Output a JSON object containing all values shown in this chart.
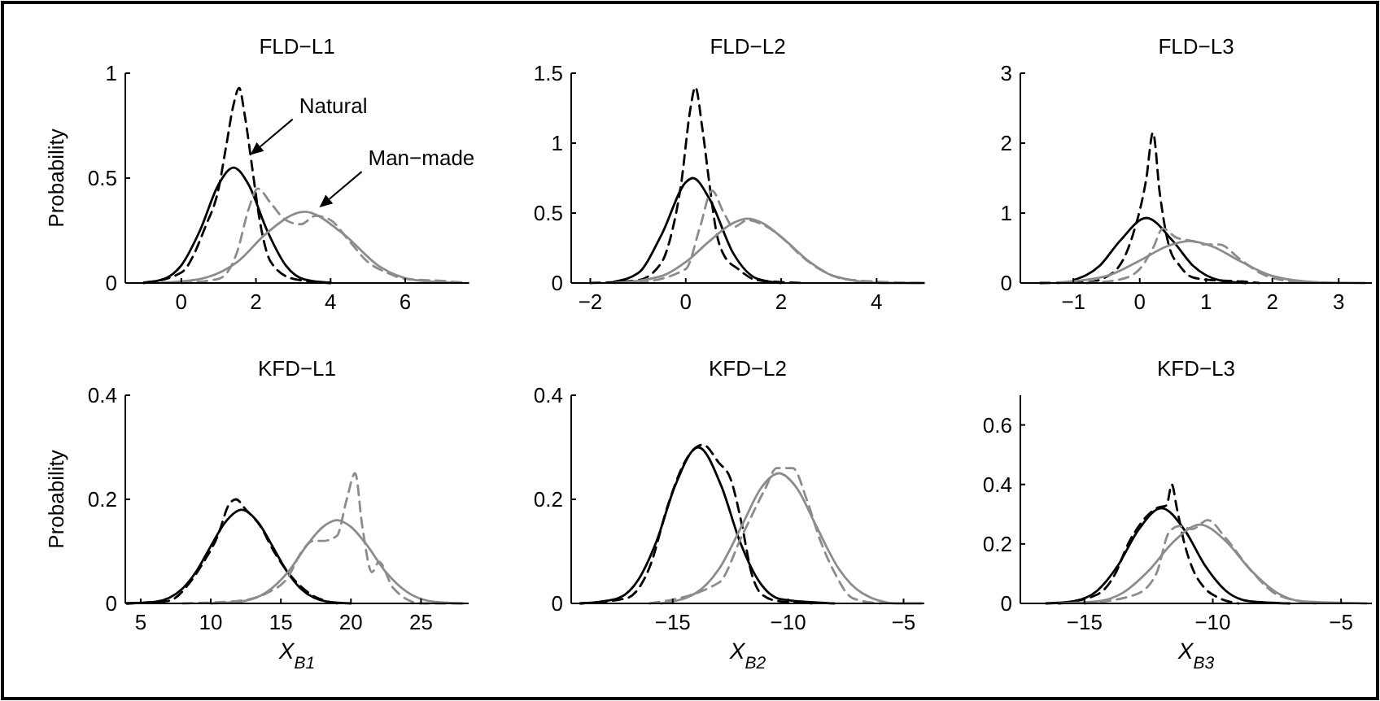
{
  "chart_data": [
    {
      "type": "line",
      "title": "FLD−L1",
      "ylabel": "Probability",
      "xlim": [
        -1.5,
        7.7
      ],
      "xticks": [
        0,
        2,
        4,
        6
      ],
      "ylim": [
        0,
        1
      ],
      "yticks": [
        0,
        0.5,
        1
      ],
      "annotations": [
        {
          "text": "Natural",
          "x": 1.85,
          "y": 0.61
        },
        {
          "text": "Man−made",
          "x": 3.7,
          "y": 0.36
        }
      ],
      "series": [
        {
          "color": "#000000",
          "line_style": "solid",
          "x": [
            -1,
            -0.5,
            0,
            0.5,
            1,
            1.4,
            1.8,
            2.3,
            2.8,
            3.3,
            4
          ],
          "values": [
            0.002,
            0.017,
            0.084,
            0.25,
            0.47,
            0.55,
            0.47,
            0.25,
            0.084,
            0.017,
            0.001
          ]
        },
        {
          "color": "#000000",
          "line_style": "dashed",
          "x": [
            -1,
            0,
            0.65,
            1,
            1.2,
            1.4,
            1.55,
            1.7,
            1.9,
            2.1,
            2.4,
            3,
            4
          ],
          "values": [
            0,
            0.05,
            0.27,
            0.45,
            0.65,
            0.85,
            0.93,
            0.8,
            0.55,
            0.3,
            0.1,
            0.02,
            0
          ]
        },
        {
          "color": "#8c8c8c",
          "line_style": "solid",
          "x": [
            -0.5,
            0.5,
            1.5,
            2.3,
            3.3,
            4.3,
            5.3,
            6.3,
            7.5
          ],
          "values": [
            0.002,
            0.019,
            0.1,
            0.24,
            0.34,
            0.24,
            0.08,
            0.013,
            0.001
          ]
        },
        {
          "color": "#8c8c8c",
          "line_style": "dashed",
          "x": [
            0,
            1,
            1.5,
            1.8,
            2.05,
            2.4,
            2.8,
            3.2,
            3.6,
            4,
            4.5,
            5,
            5.5,
            6,
            7,
            7.7
          ],
          "values": [
            0,
            0.02,
            0.15,
            0.35,
            0.45,
            0.38,
            0.3,
            0.28,
            0.32,
            0.3,
            0.2,
            0.1,
            0.05,
            0.02,
            0.01,
            0
          ]
        }
      ]
    },
    {
      "type": "line",
      "title": "FLD−L2",
      "xlim": [
        -2.4,
        5
      ],
      "xticks": [
        -2,
        0,
        2,
        4
      ],
      "ylim": [
        0,
        1.5
      ],
      "yticks": [
        0,
        0.5,
        1,
        1.5
      ],
      "series": [
        {
          "color": "#000000",
          "line_style": "solid",
          "x": [
            -1.5,
            -1,
            -0.5,
            0,
            0.15,
            0.5,
            1,
            1.5,
            2
          ],
          "values": [
            0.01,
            0.07,
            0.35,
            0.72,
            0.75,
            0.6,
            0.21,
            0.03,
            0
          ]
        },
        {
          "color": "#000000",
          "line_style": "dashed",
          "x": [
            -2,
            -1,
            -0.5,
            -0.3,
            -0.1,
            0.1,
            0.2,
            0.35,
            0.5,
            0.65,
            0.8,
            1.1,
            1.5,
            2.5
          ],
          "values": [
            0,
            0.02,
            0.15,
            0.35,
            0.7,
            1.25,
            1.4,
            1.1,
            0.7,
            0.35,
            0.2,
            0.1,
            0.02,
            0
          ]
        },
        {
          "color": "#8c8c8c",
          "line_style": "solid",
          "x": [
            -1.5,
            -0.5,
            0,
            0.5,
            1,
            1.3,
            1.6,
            2.1,
            2.6,
            3.1,
            4.1,
            5
          ],
          "values": [
            0,
            0.05,
            0.15,
            0.3,
            0.43,
            0.46,
            0.43,
            0.3,
            0.15,
            0.05,
            0,
            0
          ]
        },
        {
          "color": "#8c8c8c",
          "line_style": "dashed",
          "x": [
            -1,
            0,
            0.3,
            0.55,
            0.8,
            1,
            1.3,
            1.6,
            2,
            2.4,
            2.8,
            3.3,
            4,
            5
          ],
          "values": [
            0,
            0.1,
            0.4,
            0.66,
            0.5,
            0.4,
            0.45,
            0.42,
            0.33,
            0.2,
            0.1,
            0.03,
            0.01,
            0
          ]
        }
      ]
    },
    {
      "type": "line",
      "title": "FLD−L3",
      "xlim": [
        -1.8,
        3.5
      ],
      "xticks": [
        -1,
        0,
        1,
        2,
        3
      ],
      "ylim": [
        0,
        3
      ],
      "yticks": [
        0,
        1,
        2,
        3
      ],
      "series": [
        {
          "color": "#000000",
          "line_style": "solid",
          "x": [
            -1,
            -0.6,
            -0.3,
            0.1,
            0.5,
            0.8,
            1.2,
            1.6
          ],
          "values": [
            0.04,
            0.25,
            0.6,
            0.93,
            0.6,
            0.25,
            0.04,
            0
          ]
        },
        {
          "color": "#000000",
          "line_style": "dashed",
          "x": [
            -1.5,
            -0.8,
            -0.4,
            -0.1,
            0.1,
            0.2,
            0.3,
            0.45,
            0.6,
            0.8,
            1.1,
            1.4,
            1.8
          ],
          "values": [
            0,
            0.01,
            0.15,
            0.7,
            1.5,
            2.15,
            1.3,
            0.5,
            0.25,
            0.08,
            0.04,
            0.03,
            0
          ]
        },
        {
          "color": "#8c8c8c",
          "line_style": "solid",
          "x": [
            -1.2,
            -0.5,
            0,
            0.4,
            0.75,
            1.1,
            1.5,
            2,
            2.7,
            3.4
          ],
          "values": [
            0.01,
            0.1,
            0.32,
            0.52,
            0.6,
            0.52,
            0.32,
            0.1,
            0.01,
            0
          ]
        },
        {
          "color": "#8c8c8c",
          "line_style": "dashed",
          "x": [
            -0.8,
            -0.3,
            0,
            0.2,
            0.35,
            0.55,
            0.8,
            1,
            1.2,
            1.5,
            1.8,
            2.1,
            2.5,
            3
          ],
          "values": [
            0,
            0.05,
            0.2,
            0.5,
            0.78,
            0.65,
            0.6,
            0.55,
            0.55,
            0.35,
            0.15,
            0.05,
            0.01,
            0
          ]
        }
      ]
    },
    {
      "type": "line",
      "title": "KFD−L1",
      "ylabel": "Probability",
      "xlabel": "X$_{B1}$",
      "xlim": [
        3.9,
        28.4
      ],
      "xticks": [
        5,
        10,
        15,
        20,
        25
      ],
      "ylim": [
        0,
        0.4
      ],
      "yticks": [
        0,
        0.2,
        0.4
      ],
      "series": [
        {
          "color": "#000000",
          "line_style": "solid",
          "x": [
            4,
            6,
            8,
            9,
            10,
            11,
            12.2,
            13.4,
            14.4,
            15.4,
            16.4,
            18.4,
            20
          ],
          "values": [
            0,
            0.003,
            0.029,
            0.063,
            0.11,
            0.155,
            0.18,
            0.155,
            0.11,
            0.063,
            0.029,
            0.003,
            0
          ]
        },
        {
          "color": "#000000",
          "line_style": "dashed",
          "x": [
            4,
            7,
            8.5,
            9.5,
            10.5,
            11.3,
            11.8,
            12.5,
            13.5,
            14.5,
            15.5,
            17,
            19
          ],
          "values": [
            0,
            0.005,
            0.04,
            0.08,
            0.13,
            0.19,
            0.2,
            0.18,
            0.15,
            0.1,
            0.06,
            0.02,
            0
          ]
        },
        {
          "color": "#8c8c8c",
          "line_style": "solid",
          "x": [
            10,
            12,
            14,
            15.5,
            17,
            18,
            19,
            20,
            21,
            22.5,
            24,
            26,
            28
          ],
          "values": [
            0,
            0.003,
            0.022,
            0.06,
            0.117,
            0.147,
            0.16,
            0.147,
            0.117,
            0.06,
            0.022,
            0.003,
            0
          ]
        },
        {
          "color": "#8c8c8c",
          "line_style": "dashed",
          "x": [
            8,
            12,
            14,
            15.5,
            16.5,
            17.3,
            18,
            19,
            19.7,
            20.3,
            20.8,
            21.5,
            22,
            23,
            25,
            28
          ],
          "values": [
            0,
            0.005,
            0.02,
            0.05,
            0.1,
            0.12,
            0.12,
            0.13,
            0.2,
            0.25,
            0.15,
            0.06,
            0.08,
            0.03,
            0,
            0
          ]
        }
      ]
    },
    {
      "type": "line",
      "title": "KFD−L2",
      "xlabel": "X$_{B2}$",
      "xlim": [
        -19.4,
        -4.1
      ],
      "xticks": [
        -15,
        -10,
        -5
      ],
      "ylim": [
        0,
        0.4
      ],
      "yticks": [
        0,
        0.2,
        0.4
      ],
      "series": [
        {
          "color": "#000000",
          "line_style": "solid",
          "x": [
            -19,
            -17.5,
            -16.5,
            -15.7,
            -14.9,
            -13.9,
            -12.9,
            -12.1,
            -11.3,
            -10.3,
            -8
          ],
          "values": [
            0,
            0.008,
            0.045,
            0.12,
            0.226,
            0.3,
            0.226,
            0.12,
            0.045,
            0.008,
            0
          ]
        },
        {
          "color": "#000000",
          "line_style": "dashed",
          "x": [
            -19,
            -17,
            -16,
            -15.2,
            -14.5,
            -13.7,
            -13,
            -12.5,
            -12,
            -11.6,
            -11.2,
            -10.5,
            -9
          ],
          "values": [
            0,
            0.01,
            0.07,
            0.19,
            0.27,
            0.305,
            0.27,
            0.24,
            0.15,
            0.06,
            0.02,
            0.005,
            0
          ]
        },
        {
          "color": "#8c8c8c",
          "line_style": "solid",
          "x": [
            -15.5,
            -14,
            -13,
            -12,
            -11.2,
            -10.4,
            -9.6,
            -8.8,
            -7.8,
            -6.8,
            -5.3,
            -4.2
          ],
          "values": [
            0,
            0.02,
            0.066,
            0.15,
            0.22,
            0.25,
            0.22,
            0.15,
            0.066,
            0.02,
            0,
            0
          ]
        },
        {
          "color": "#8c8c8c",
          "line_style": "dashed",
          "x": [
            -16,
            -13,
            -12,
            -11,
            -10.5,
            -9.8,
            -9.2,
            -8.6,
            -8,
            -7.2,
            -6
          ],
          "values": [
            0,
            0.04,
            0.13,
            0.22,
            0.26,
            0.26,
            0.2,
            0.12,
            0.06,
            0.01,
            0
          ]
        }
      ]
    },
    {
      "type": "line",
      "title": "KFD−L3",
      "xlabel": "X$_{B3}$",
      "xlim": [
        -17.5,
        -3.8
      ],
      "xticks": [
        -15,
        -10,
        -5
      ],
      "ylim": [
        0,
        0.7
      ],
      "yticks": [
        0,
        0.2,
        0.4,
        0.6
      ],
      "series": [
        {
          "color": "#000000",
          "line_style": "solid",
          "x": [
            -16.5,
            -15.4,
            -14.5,
            -13.7,
            -12.9,
            -12,
            -11.1,
            -10.3,
            -9.5,
            -8.6,
            -7
          ],
          "values": [
            0,
            0.008,
            0.043,
            0.127,
            0.247,
            0.32,
            0.247,
            0.127,
            0.043,
            0.008,
            0
          ]
        },
        {
          "color": "#000000",
          "line_style": "dashed",
          "x": [
            -16,
            -14.5,
            -13.8,
            -13.3,
            -12.8,
            -12.2,
            -11.8,
            -11.6,
            -11.4,
            -11.1,
            -10.8,
            -10.3,
            -9.8,
            -9
          ],
          "values": [
            0,
            0.03,
            0.1,
            0.2,
            0.27,
            0.32,
            0.33,
            0.4,
            0.32,
            0.2,
            0.12,
            0.05,
            0.02,
            0
          ]
        },
        {
          "color": "#8c8c8c",
          "line_style": "solid",
          "x": [
            -16,
            -14.5,
            -13.5,
            -12.5,
            -11.5,
            -10.5,
            -9.5,
            -8.5,
            -7.5,
            -6.5,
            -4
          ],
          "values": [
            0,
            0.007,
            0.036,
            0.11,
            0.21,
            0.265,
            0.21,
            0.11,
            0.036,
            0.007,
            0
          ]
        },
        {
          "color": "#8c8c8c",
          "line_style": "dashed",
          "x": [
            -15,
            -13,
            -12.2,
            -11.7,
            -11.3,
            -10.8,
            -10.2,
            -9.5,
            -8.5,
            -7.5,
            -6
          ],
          "values": [
            0,
            0.03,
            0.1,
            0.24,
            0.26,
            0.25,
            0.28,
            0.22,
            0.11,
            0.03,
            0
          ]
        }
      ]
    }
  ]
}
